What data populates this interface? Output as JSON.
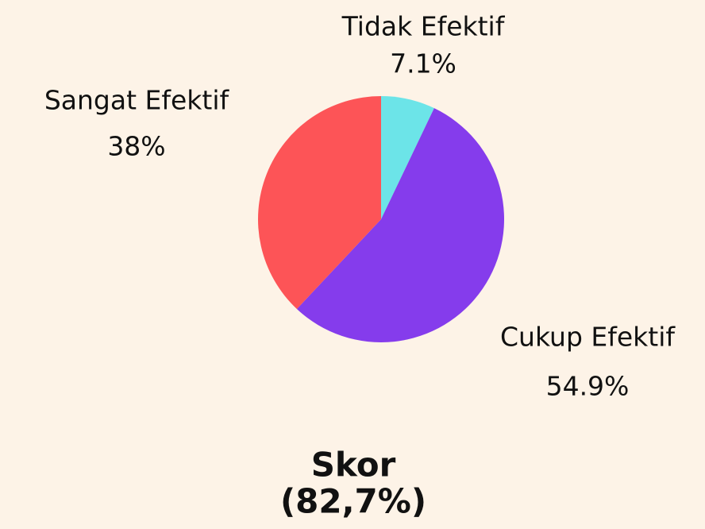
{
  "chart_data": {
    "type": "pie",
    "categories": [
      "Tidak Efektif",
      "Cukup Efektif",
      "Sangat Efektif"
    ],
    "values": [
      7.1,
      54.9,
      38
    ],
    "value_labels": [
      "7.1%",
      "54.9%",
      "38%"
    ],
    "colors": [
      "#6ce4e8",
      "#853cec",
      "#fd5457"
    ],
    "annotations": [
      "Skor",
      "(82,7%)"
    ]
  }
}
